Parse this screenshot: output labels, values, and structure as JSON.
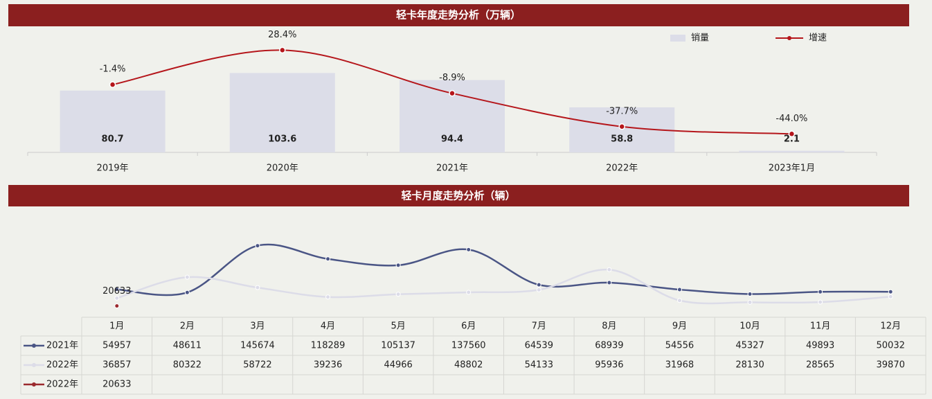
{
  "chart_data": [
    {
      "type": "bar",
      "title": "轻卡年度走势分析（万辆）",
      "categories": [
        "2019年",
        "2020年",
        "2021年",
        "2022年",
        "2023年1月"
      ],
      "ylim": [
        0,
        160
      ],
      "y2lim": [
        -60,
        46
      ],
      "legend": "top-right",
      "series": [
        {
          "name": "销量",
          "type": "bar",
          "color": "#dcdde8",
          "values": [
            80.7,
            103.6,
            94.4,
            58.8,
            2.1
          ]
        },
        {
          "name": "增速",
          "type": "line",
          "axis": "y2",
          "color": "#b5161b",
          "values": [
            -1.4,
            28.4,
            -8.9,
            -37.7,
            -44.0
          ],
          "value_labels": [
            "-1.4%",
            "28.4%",
            "-8.9%",
            "-37.7%",
            "-44.0%"
          ]
        }
      ]
    },
    {
      "type": "line",
      "title": "轻卡月度走势分析（辆）",
      "categories": [
        "1月",
        "2月",
        "3月",
        "4月",
        "5月",
        "6月",
        "7月",
        "8月",
        "9月",
        "10月",
        "11月",
        "12月"
      ],
      "ylim": [
        0,
        220000
      ],
      "series": [
        {
          "name": "2021年",
          "color": "#4a5585",
          "values": [
            54957,
            48611,
            145674,
            118289,
            105137,
            137560,
            64539,
            68939,
            54556,
            45327,
            49893,
            50032
          ]
        },
        {
          "name": "2022年",
          "color": "#dcdce8",
          "values": [
            36857,
            80322,
            58722,
            39236,
            44966,
            48802,
            54133,
            95936,
            31968,
            28130,
            28565,
            39870
          ]
        },
        {
          "name": "2022年",
          "color": "#9b2a2e",
          "values": [
            20633,
            null,
            null,
            null,
            null,
            null,
            null,
            null,
            null,
            null,
            null,
            null
          ]
        }
      ]
    }
  ]
}
